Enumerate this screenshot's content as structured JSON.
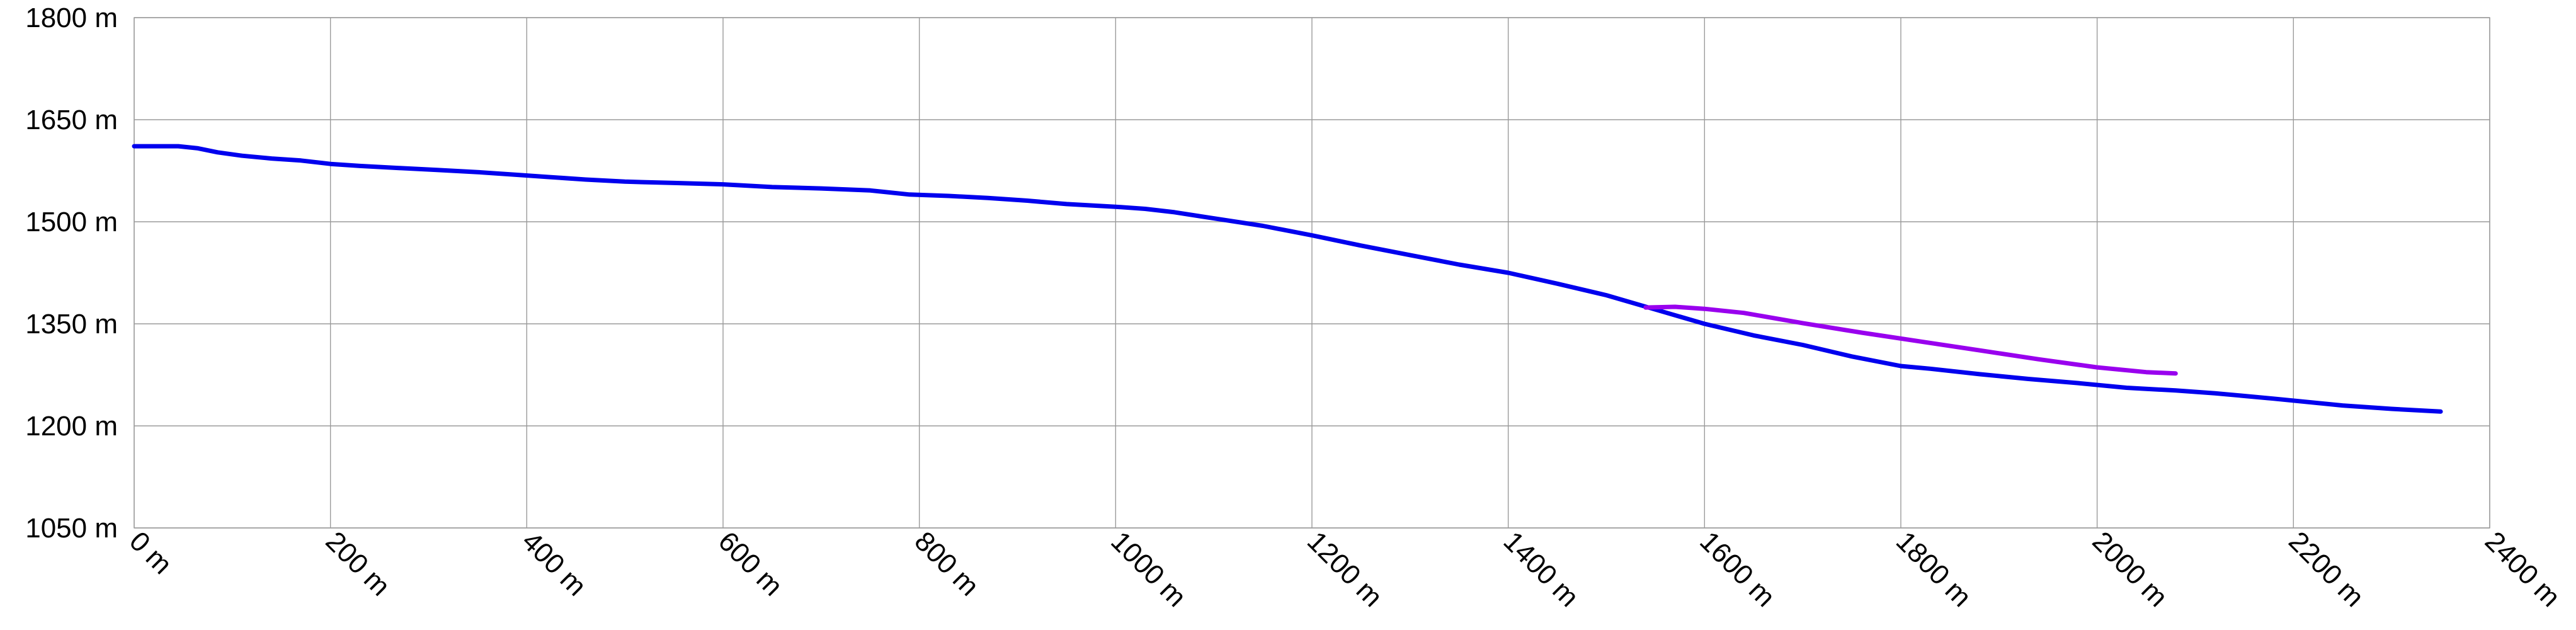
{
  "chart_data": {
    "type": "line",
    "title": "",
    "xlabel": "",
    "ylabel": "",
    "xlim": [
      0,
      2400
    ],
    "ylim": [
      1050,
      1800
    ],
    "x_ticks": [
      0,
      200,
      400,
      600,
      800,
      1000,
      1200,
      1400,
      1600,
      1800,
      2000,
      2200,
      2400
    ],
    "y_ticks": [
      1050,
      1200,
      1350,
      1500,
      1650,
      1800
    ],
    "x_tick_labels": [
      "0 m",
      "200 m",
      "400 m",
      "600 m",
      "800 m",
      "1000 m",
      "1200 m",
      "1400 m",
      "1600 m",
      "1800 m",
      "2000 m",
      "2200 m",
      "2400 m"
    ],
    "y_tick_labels": [
      "1050 m",
      "1200 m",
      "1350 m",
      "1500 m",
      "1650 m",
      "1800 m"
    ],
    "grid": true,
    "series": [
      {
        "color": "#0000ee",
        "points": [
          [
            0,
            1611
          ],
          [
            20,
            1611
          ],
          [
            45,
            1611
          ],
          [
            65,
            1608
          ],
          [
            85,
            1602
          ],
          [
            110,
            1597
          ],
          [
            140,
            1593
          ],
          [
            170,
            1590
          ],
          [
            200,
            1585
          ],
          [
            230,
            1582
          ],
          [
            270,
            1579
          ],
          [
            310,
            1576
          ],
          [
            350,
            1573
          ],
          [
            390,
            1569
          ],
          [
            420,
            1566
          ],
          [
            460,
            1562
          ],
          [
            500,
            1559
          ],
          [
            550,
            1557
          ],
          [
            600,
            1555
          ],
          [
            650,
            1551
          ],
          [
            700,
            1549
          ],
          [
            750,
            1546
          ],
          [
            790,
            1540
          ],
          [
            830,
            1538
          ],
          [
            870,
            1535
          ],
          [
            910,
            1531
          ],
          [
            950,
            1526
          ],
          [
            1000,
            1522
          ],
          [
            1030,
            1519
          ],
          [
            1060,
            1514
          ],
          [
            1100,
            1505
          ],
          [
            1150,
            1494
          ],
          [
            1200,
            1480
          ],
          [
            1250,
            1465
          ],
          [
            1300,
            1451
          ],
          [
            1350,
            1437
          ],
          [
            1400,
            1425
          ],
          [
            1450,
            1409
          ],
          [
            1500,
            1392
          ],
          [
            1550,
            1371
          ],
          [
            1600,
            1350
          ],
          [
            1650,
            1333
          ],
          [
            1700,
            1319
          ],
          [
            1750,
            1302
          ],
          [
            1800,
            1288
          ],
          [
            1830,
            1284
          ],
          [
            1880,
            1276
          ],
          [
            1930,
            1269
          ],
          [
            1980,
            1263
          ],
          [
            2030,
            1256
          ],
          [
            2080,
            1252
          ],
          [
            2120,
            1248
          ],
          [
            2180,
            1240
          ],
          [
            2250,
            1230
          ],
          [
            2300,
            1225
          ],
          [
            2350,
            1221
          ]
        ]
      },
      {
        "color": "#9900ee",
        "points": [
          [
            1540,
            1374
          ],
          [
            1570,
            1375
          ],
          [
            1600,
            1372
          ],
          [
            1640,
            1366
          ],
          [
            1700,
            1351
          ],
          [
            1760,
            1337
          ],
          [
            1820,
            1324
          ],
          [
            1880,
            1311
          ],
          [
            1940,
            1298
          ],
          [
            2000,
            1286
          ],
          [
            2050,
            1279
          ],
          [
            2080,
            1277
          ]
        ]
      }
    ]
  }
}
